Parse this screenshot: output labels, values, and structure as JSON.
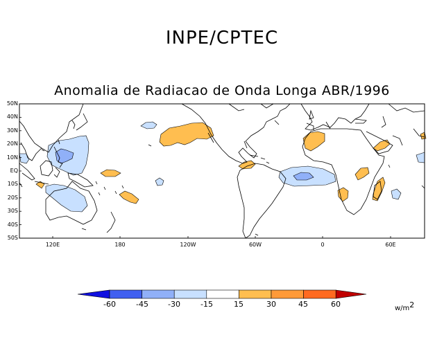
{
  "header": {
    "organization": "INPE/CPTEC",
    "title": "Anomalia de Radiacao de Onda Longa ABR/1996"
  },
  "map": {
    "variable": "Outgoing Longwave Radiation anomaly",
    "period": "ABR/1996",
    "lat_labels": [
      "50N",
      "40N",
      "30N",
      "20N",
      "10N",
      "EQ",
      "10S",
      "20S",
      "30S",
      "40S",
      "50S"
    ],
    "lon_labels": [
      "120E",
      "180",
      "120W",
      "60W",
      "0",
      "60E"
    ],
    "colors": {
      "neg_60": "#1010e0",
      "neg_45": "#4060f0",
      "neg_30": "#90b0f8",
      "neg_15": "#c8e0ff",
      "zero": "#ffffff",
      "pos_15": "#ffbe50",
      "pos_30": "#ff9a38",
      "pos_45": "#ff6a20",
      "pos_60": "#f03010",
      "pos_max": "#c00000"
    }
  },
  "colorbar": {
    "labels": [
      "-60",
      "-45",
      "-30",
      "-15",
      "15",
      "30",
      "45",
      "60"
    ],
    "units": "w/m",
    "units_exp": "2",
    "segments": [
      "#1010e0",
      "#4060f0",
      "#90b0f8",
      "#c8e0ff",
      "#ffffff",
      "#ffbe50",
      "#ff9a38",
      "#ff6a20",
      "#f03010",
      "#c00000"
    ]
  }
}
